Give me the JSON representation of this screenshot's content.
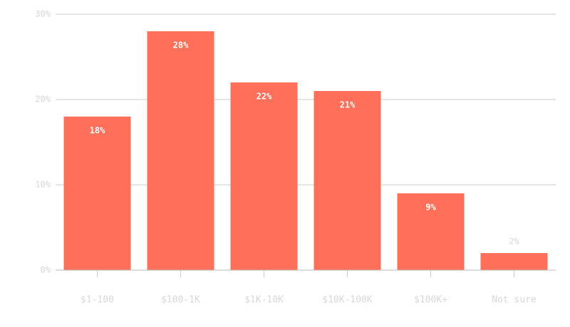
{
  "chart_data": {
    "type": "bar",
    "categories": [
      "$1-100",
      "$100-1K",
      "$1K-10K",
      "$10K-100K",
      "$100K+",
      "Not sure"
    ],
    "values": [
      18,
      28,
      22,
      21,
      9,
      2
    ],
    "value_labels": [
      "18%",
      "28%",
      "22%",
      "21%",
      "9%",
      "2%"
    ],
    "color": "#ff6f59",
    "ylim": [
      0,
      30
    ],
    "yticks": [
      {
        "value": 0,
        "label": "0%"
      },
      {
        "value": 10,
        "label": "10%"
      },
      {
        "value": 20,
        "label": "20%"
      },
      {
        "value": 30,
        "label": "30%"
      }
    ],
    "grid": true
  }
}
